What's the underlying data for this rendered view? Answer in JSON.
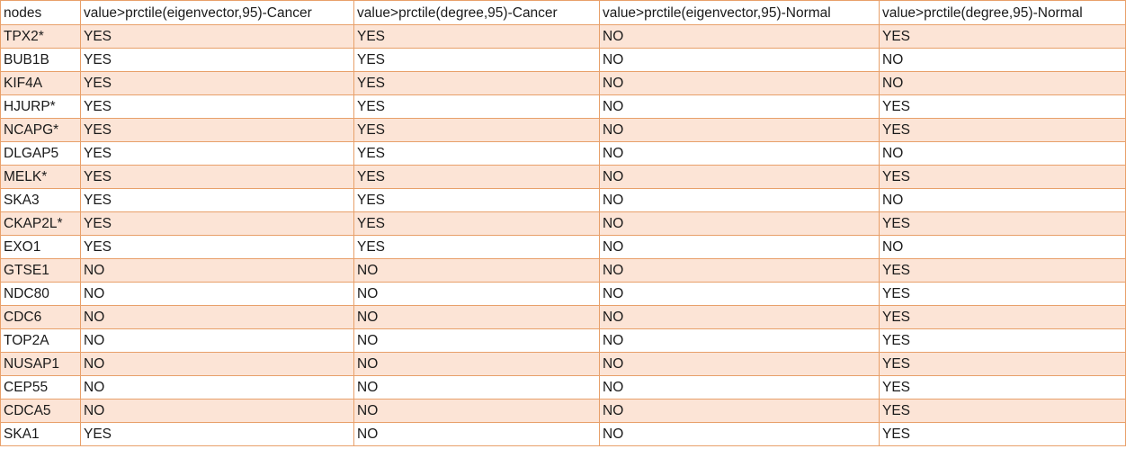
{
  "table": {
    "headers": [
      "nodes",
      "value>prctile(eigenvector,95)-Cancer",
      "value>prctile(degree,95)-Cancer",
      "value>prctile(eigenvector,95)-Normal",
      "value>prctile(degree,95)-Normal"
    ],
    "rows": [
      [
        "TPX2*",
        "YES",
        "YES",
        "NO",
        "YES"
      ],
      [
        "BUB1B",
        "YES",
        "YES",
        "NO",
        "NO"
      ],
      [
        "KIF4A",
        "YES",
        "YES",
        "NO",
        "NO"
      ],
      [
        "HJURP*",
        "YES",
        "YES",
        "NO",
        "YES"
      ],
      [
        "NCAPG*",
        "YES",
        "YES",
        "NO",
        "YES"
      ],
      [
        "DLGAP5",
        "YES",
        "YES",
        "NO",
        "NO"
      ],
      [
        "MELK*",
        "YES",
        "YES",
        "NO",
        "YES"
      ],
      [
        "SKA3",
        "YES",
        "YES",
        "NO",
        "NO"
      ],
      [
        "CKAP2L*",
        "YES",
        "YES",
        "NO",
        "YES"
      ],
      [
        "EXO1",
        "YES",
        "YES",
        "NO",
        "NO"
      ],
      [
        "GTSE1",
        "NO",
        "NO",
        "NO",
        "YES"
      ],
      [
        "NDC80",
        "NO",
        "NO",
        "NO",
        "YES"
      ],
      [
        "CDC6",
        "NO",
        "NO",
        "NO",
        "YES"
      ],
      [
        "TOP2A",
        "NO",
        "NO",
        "NO",
        "YES"
      ],
      [
        "NUSAP1",
        "NO",
        "NO",
        "NO",
        "YES"
      ],
      [
        "CEP55",
        "NO",
        "NO",
        "NO",
        "YES"
      ],
      [
        "CDCA5",
        "NO",
        "NO",
        "NO",
        "YES"
      ],
      [
        "SKA1",
        "YES",
        "NO",
        "NO",
        "YES"
      ]
    ]
  },
  "colors": {
    "shaded_row": "#fce4d6",
    "border": "#e8a06a"
  }
}
